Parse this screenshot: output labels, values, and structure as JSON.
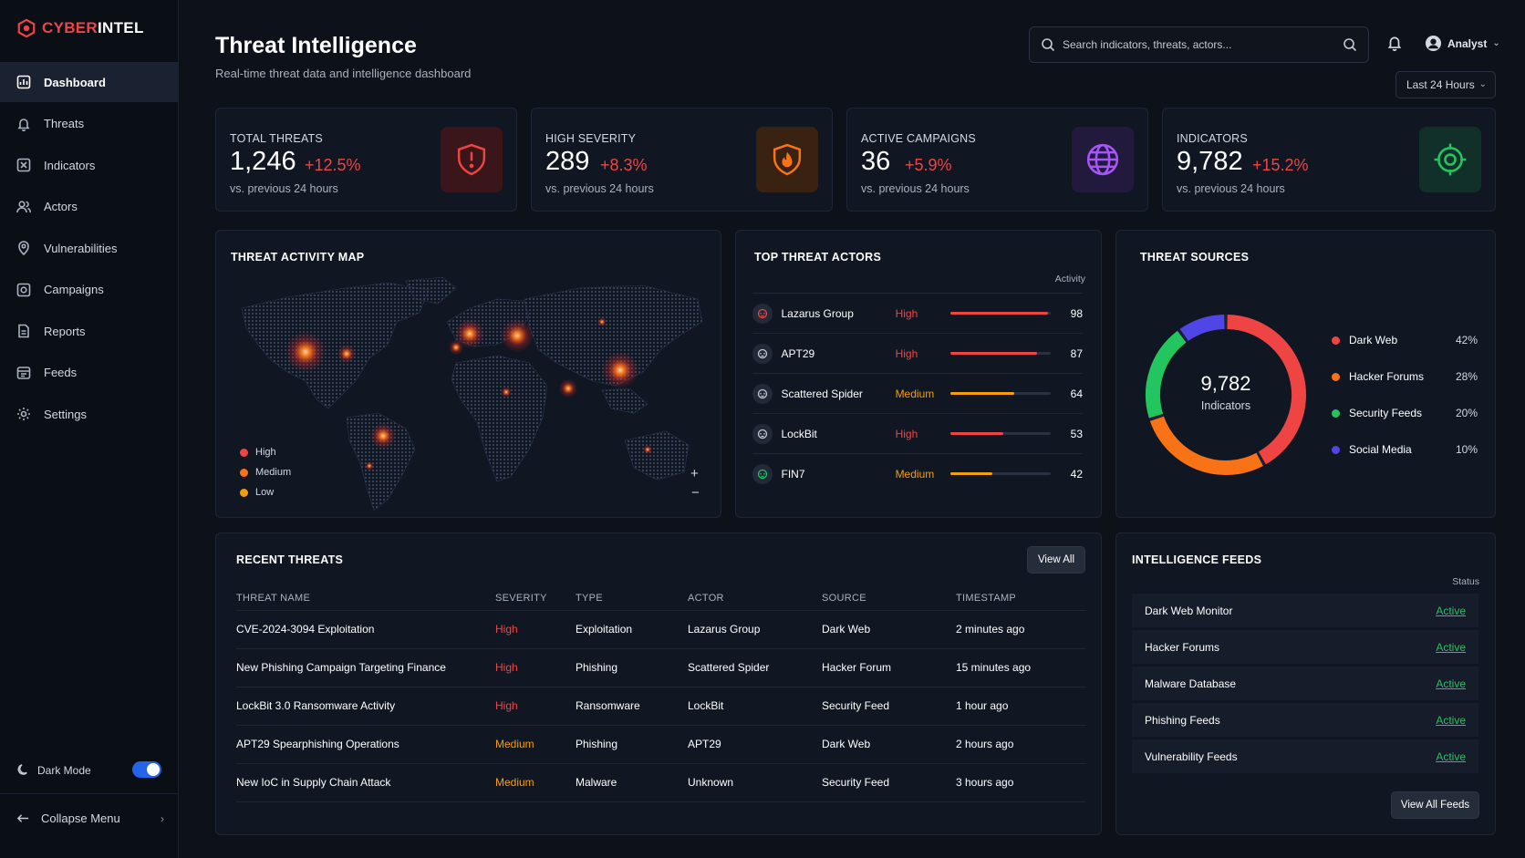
{
  "app": {
    "brand_part1": "CYBER",
    "brand_part2": "INTEL"
  },
  "sidebar": {
    "items": [
      {
        "label": "Dashboard",
        "icon": "dashboard-icon",
        "active": true
      },
      {
        "label": "Threats",
        "icon": "bell-icon"
      },
      {
        "label": "Indicators",
        "icon": "indicator-icon"
      },
      {
        "label": "Actors",
        "icon": "users-icon"
      },
      {
        "label": "Vulnerabilities",
        "icon": "location-icon"
      },
      {
        "label": "Campaigns",
        "icon": "campaign-icon"
      },
      {
        "label": "Reports",
        "icon": "document-icon"
      },
      {
        "label": "Feeds",
        "icon": "feed-icon"
      },
      {
        "label": "Settings",
        "icon": "gear-icon"
      }
    ],
    "dark_mode_label": "Dark Mode",
    "dark_mode_on": true,
    "collapse_label": "Collapse Menu"
  },
  "header": {
    "title": "Threat Intelligence",
    "subtitle": "Real-time threat data and intelligence dashboard",
    "search_placeholder": "Search indicators, threats, actors...",
    "user_name": "Analyst",
    "time_range": "Last 24 Hours"
  },
  "stats": [
    {
      "label": "TOTAL THREATS",
      "value": "1,246",
      "change": "+12.5%",
      "sub": "vs. previous 24 hours",
      "icon": "shield-alert-icon",
      "accent": "#ef4444"
    },
    {
      "label": "HIGH SEVERITY",
      "value": "289",
      "change": "+8.3%",
      "sub": "vs. previous 24 hours",
      "icon": "shield-fire-icon",
      "accent": "#f97316"
    },
    {
      "label": "ACTIVE CAMPAIGNS",
      "value": "36",
      "change": "+5.9%",
      "sub": "vs. previous 24 hours",
      "icon": "globe-icon",
      "accent": "#8b5cf6"
    },
    {
      "label": "INDICATORS",
      "value": "9,782",
      "change": "+15.2%",
      "sub": "vs. previous 24 hours",
      "icon": "target-icon",
      "accent": "#22c55e"
    }
  ],
  "map": {
    "title": "THREAT ACTIVITY MAP",
    "legend": [
      {
        "label": "High",
        "color": "#ef4444"
      },
      {
        "label": "Medium",
        "color": "#f97316"
      },
      {
        "label": "Low",
        "color": "#f59e0b"
      }
    ],
    "zoom_in": "+",
    "zoom_out": "−"
  },
  "actors": {
    "title": "TOP THREAT ACTORS",
    "column": "Activity",
    "rows": [
      {
        "name": "Lazarus Group",
        "severity": "High",
        "activity": 98
      },
      {
        "name": "APT29",
        "severity": "High",
        "activity": 87
      },
      {
        "name": "Scattered Spider",
        "severity": "Medium",
        "activity": 64
      },
      {
        "name": "LockBit",
        "severity": "High",
        "activity": 53
      },
      {
        "name": "FIN7",
        "severity": "Medium",
        "activity": 42
      }
    ]
  },
  "sources": {
    "title": "THREAT SOURCES",
    "center_value": "9,782",
    "center_label": "Indicators",
    "items": [
      {
        "label": "Dark Web",
        "pct": "42%",
        "value": 42,
        "color": "#ef4444"
      },
      {
        "label": "Hacker Forums",
        "pct": "28%",
        "value": 28,
        "color": "#f97316"
      },
      {
        "label": "Security Feeds",
        "pct": "20%",
        "value": 20,
        "color": "#22c55e"
      },
      {
        "label": "Social Media",
        "pct": "10%",
        "value": 10,
        "color": "#4f46e5"
      }
    ]
  },
  "recent": {
    "title": "RECENT THREATS",
    "view_all": "View All",
    "columns": [
      "THREAT NAME",
      "SEVERITY",
      "TYPE",
      "ACTOR",
      "SOURCE",
      "TIMESTAMP"
    ],
    "rows": [
      [
        "CVE-2024-3094 Exploitation",
        "High",
        "Exploitation",
        "Lazarus Group",
        "Dark Web",
        "2 minutes ago"
      ],
      [
        "New Phishing Campaign Targeting Finance",
        "High",
        "Phishing",
        "Scattered Spider",
        "Hacker Forum",
        "15 minutes ago"
      ],
      [
        "LockBit 3.0 Ransomware Activity",
        "High",
        "Ransomware",
        "LockBit",
        "Security Feed",
        "1 hour ago"
      ],
      [
        "APT29 Spearphishing Operations",
        "Medium",
        "Phishing",
        "APT29",
        "Dark Web",
        "2 hours ago"
      ],
      [
        "New IoC in Supply Chain Attack",
        "Medium",
        "Malware",
        "Unknown",
        "Security Feed",
        "3 hours ago"
      ]
    ]
  },
  "feeds": {
    "title": "INTELLIGENCE FEEDS",
    "column": "Status",
    "rows": [
      {
        "name": "Dark Web Monitor",
        "status": "Active"
      },
      {
        "name": "Hacker Forums",
        "status": "Active"
      },
      {
        "name": "Malware Database",
        "status": "Active"
      },
      {
        "name": "Phishing Feeds",
        "status": "Active"
      },
      {
        "name": "Vulnerability Feeds",
        "status": "Active"
      }
    ],
    "view_all": "View All Feeds"
  }
}
